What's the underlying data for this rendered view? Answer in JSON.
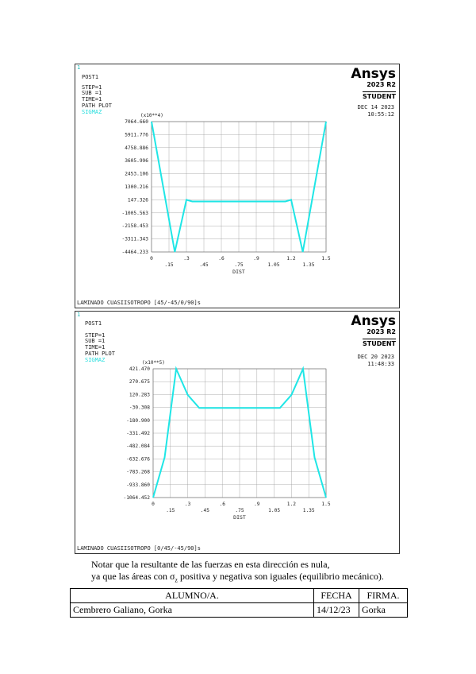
{
  "plots": [
    {
      "post": "POST1",
      "info": [
        "STEP=1",
        "SUB =1",
        "TIME=1",
        "PATH PLOT"
      ],
      "variable": "SIGMAZ",
      "brand": "Ansys",
      "version": "2023 R2",
      "student": "STUDENT",
      "date": "DEC 14 2023",
      "time": "10:55:12",
      "footer": "LAMINADO CUASIISOTROPO [45/-45/0/90]s",
      "chart_data": {
        "type": "line",
        "multiplier": "(x10**4)",
        "xlabel": "DIST",
        "xlim": [
          0,
          1.5
        ],
        "ylim": [
          -4464.233,
          7064.66
        ],
        "yticks": [
          "7064.660",
          "5911.776",
          "4758.886",
          "3605.996",
          "2453.106",
          "1300.216",
          "147.326",
          "-1005.563",
          "-2158.453",
          "-3311.343",
          "-4464.233"
        ],
        "xticks_upper": [
          "0",
          ".3",
          ".6",
          ".9",
          "1.2",
          "1.5"
        ],
        "xticks_lower": [
          ".15",
          ".45",
          ".75",
          "1.05",
          "1.35"
        ],
        "x": [
          0,
          0.2,
          0.3,
          0.35,
          1.15,
          1.2,
          1.3,
          1.5
        ],
        "y": [
          7064.66,
          -4464.233,
          147.326,
          0,
          0,
          147.326,
          -4464.233,
          7064.66
        ],
        "color": "#1fe6e6"
      }
    },
    {
      "post": "POST1",
      "info": [
        "STEP=1",
        "SUB =1",
        "TIME=1",
        "PATH PLOT"
      ],
      "variable": "SIGMAZ",
      "brand": "Ansys",
      "version": "2023 R2",
      "student": "STUDENT",
      "date": "DEC 20 2023",
      "time": "11:48:33",
      "footer": "LAMINADO CUASIISOTROPO [0/45/-45/90]s",
      "chart_data": {
        "type": "line",
        "multiplier": "(x10**5)",
        "xlabel": "DIST",
        "xlim": [
          0,
          1.5
        ],
        "ylim": [
          -1064.452,
          421.47
        ],
        "yticks": [
          "421.470",
          "270.675",
          "120.283",
          "-30.308",
          "-180.900",
          "-331.492",
          "-482.084",
          "-632.676",
          "-783.268",
          "-933.860",
          "-1064.452"
        ],
        "xticks_upper": [
          "0",
          ".3",
          ".6",
          ".9",
          "1.2",
          "1.5"
        ],
        "xticks_lower": [
          ".15",
          ".45",
          ".75",
          "1.05",
          "1.35"
        ],
        "x": [
          0,
          0.1,
          0.2,
          0.3,
          0.4,
          1.1,
          1.2,
          1.3,
          1.4,
          1.5
        ],
        "y": [
          -1064.452,
          -600,
          421.47,
          120.283,
          -30.308,
          -30.308,
          120.283,
          421.47,
          -600,
          -1064.452
        ],
        "color": "#1fe6e6"
      }
    }
  ],
  "note": {
    "line1": "Notar que la resultante de las fuerzas en esta dirección es nula,",
    "line2_pre": "ya que las áreas con σ",
    "line2_sub": "z",
    "line2_post": " positiva y negativa son iguales (equilibrio mecánico)."
  },
  "signature": {
    "h_student": "ALUMNO/A.",
    "h_date": "FECHA",
    "h_sign": "FIRMA.",
    "student": "Cembrero Galiano, Gorka",
    "date": "14/12/23",
    "sign": "Gorka"
  }
}
